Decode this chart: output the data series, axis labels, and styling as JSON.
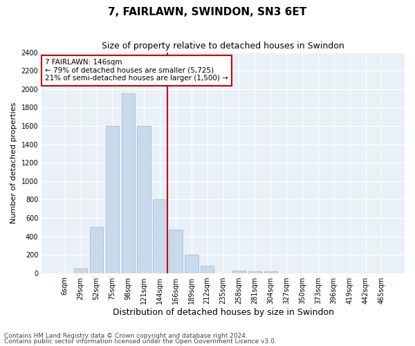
{
  "title1": "7, FAIRLAWN, SWINDON, SN3 6ET",
  "title2": "Size of property relative to detached houses in Swindon",
  "xlabel": "Distribution of detached houses by size in Swindon",
  "ylabel": "Number of detached properties",
  "categories": [
    "6sqm",
    "29sqm",
    "52sqm",
    "75sqm",
    "98sqm",
    "121sqm",
    "144sqm",
    "166sqm",
    "189sqm",
    "212sqm",
    "235sqm",
    "258sqm",
    "281sqm",
    "304sqm",
    "327sqm",
    "350sqm",
    "373sqm",
    "396sqm",
    "419sqm",
    "442sqm",
    "465sqm"
  ],
  "values": [
    0,
    50,
    500,
    1600,
    1950,
    1600,
    800,
    475,
    200,
    80,
    0,
    30,
    20,
    20,
    0,
    0,
    0,
    0,
    0,
    0,
    0
  ],
  "bar_color": "#c9d9ec",
  "bar_edgecolor": "#a8c4dc",
  "vline_color": "#cc0000",
  "vline_x": 6.5,
  "annotation_text": "7 FAIRLAWN: 146sqm\n← 79% of detached houses are smaller (5,725)\n21% of semi-detached houses are larger (1,500) →",
  "annotation_box_facecolor": "#ffffff",
  "annotation_box_edgecolor": "#cc0000",
  "ylim": [
    0,
    2400
  ],
  "yticks": [
    0,
    200,
    400,
    600,
    800,
    1000,
    1200,
    1400,
    1600,
    1800,
    2000,
    2200,
    2400
  ],
  "background_color": "#eaf0f8",
  "footer1": "Contains HM Land Registry data © Crown copyright and database right 2024.",
  "footer2": "Contains public sector information licensed under the Open Government Licence v3.0.",
  "title1_fontsize": 11,
  "title2_fontsize": 9,
  "xlabel_fontsize": 9,
  "ylabel_fontsize": 8,
  "tick_fontsize": 7,
  "annotation_fontsize": 7.5,
  "footer_fontsize": 6.5
}
